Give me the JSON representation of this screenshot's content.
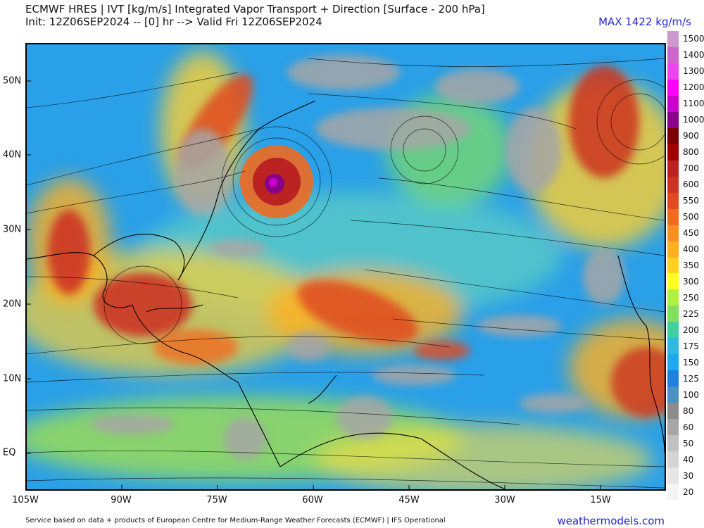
{
  "header": {
    "title": "ECMWF HRES | IVT [kg/m/s] Integrated Vapor Transport + Direction [Surface - 200 hPa]",
    "init_line": "Init: 12Z06SEP2024 -- [0] hr --> Valid Fri 12Z06SEP2024",
    "max_label": "MAX 1422 kg/m/s"
  },
  "axes": {
    "lat_labels": [
      "50N",
      "40N",
      "30N",
      "20N",
      "10N",
      "EQ"
    ],
    "lon_labels": [
      "105W",
      "90W",
      "75W",
      "60W",
      "45W",
      "30W",
      "15W"
    ]
  },
  "colorbar": {
    "levels": [
      "1500",
      "1400",
      "1300",
      "1200",
      "1100",
      "1000",
      "900",
      "800",
      "700",
      "600",
      "550",
      "500",
      "450",
      "400",
      "350",
      "300",
      "250",
      "225",
      "200",
      "175",
      "150",
      "125",
      "100",
      "80",
      "60",
      "50",
      "40",
      "30",
      "20"
    ],
    "colors": [
      "#cc99cc",
      "#cc66cc",
      "#ee44ee",
      "#ff00ff",
      "#cc00cc",
      "#880088",
      "#7a0000",
      "#a00000",
      "#bb2222",
      "#cc3322",
      "#e04a20",
      "#f06a20",
      "#f89020",
      "#ffb020",
      "#ffd020",
      "#ffff20",
      "#b0f040",
      "#80e060",
      "#40d0a0",
      "#30b8e0",
      "#20a8f0",
      "#2080e0",
      "#4a90c0",
      "#8c8c8c",
      "#a6a6a6",
      "#c0c0c0",
      "#d4d4d4",
      "#e6e6e6",
      "#f5f5f5"
    ]
  },
  "footer": {
    "source": "Service based on data + products of European Centre for Medium-Range Weather Forecasts (ECMWF) | IFS Operational",
    "site": "weathermodels.com"
  }
}
